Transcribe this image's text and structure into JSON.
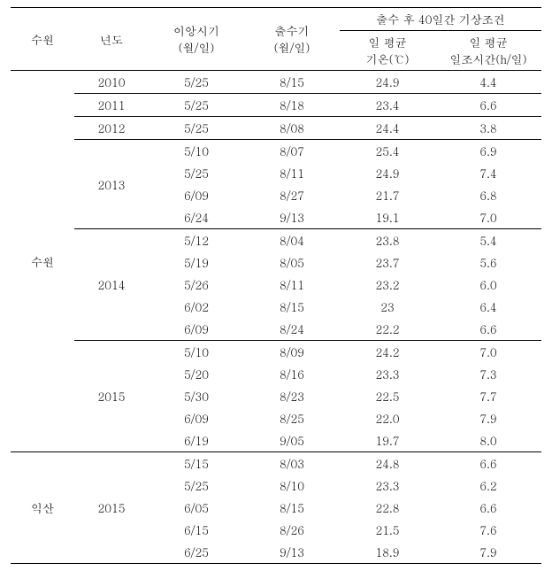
{
  "headers": {
    "region": "수원",
    "year": "년도",
    "transplant": "이앙시기",
    "transplant_unit": "(월/일)",
    "heading": "출수기",
    "heading_unit": "(월/일)",
    "weather_group": "출수 후 40일간 기상조건",
    "avg_temp": "일 평균",
    "avg_temp_unit": "기온(℃)",
    "avg_sun": "일 평균",
    "avg_sun_unit": "일조시간(h/일)"
  },
  "regions": {
    "suwon": "수원",
    "iksan": "익산"
  },
  "years": {
    "y2010": "2010",
    "y2011": "2011",
    "y2012": "2012",
    "y2013": "2013",
    "y2014": "2014",
    "y2015": "2015"
  },
  "rows": [
    {
      "t": "5/25",
      "h": "8/15",
      "temp": "24.9",
      "sun": "4.4"
    },
    {
      "t": "5/25",
      "h": "8/18",
      "temp": "23.4",
      "sun": "6.6"
    },
    {
      "t": "5/25",
      "h": "8/08",
      "temp": "24.4",
      "sun": "3.8"
    },
    {
      "t": "5/10",
      "h": "8/07",
      "temp": "25.4",
      "sun": "6.9"
    },
    {
      "t": "5/25",
      "h": "8/11",
      "temp": "24.9",
      "sun": "7.4"
    },
    {
      "t": "6/09",
      "h": "8/27",
      "temp": "21.7",
      "sun": "6.8"
    },
    {
      "t": "6/24",
      "h": "9/13",
      "temp": "19.1",
      "sun": "7.0"
    },
    {
      "t": "5/12",
      "h": "8/04",
      "temp": "23.8",
      "sun": "5.4"
    },
    {
      "t": "5/19",
      "h": "8/05",
      "temp": "23.7",
      "sun": "5.6"
    },
    {
      "t": "5/26",
      "h": "8/11",
      "temp": "23.2",
      "sun": "6.0"
    },
    {
      "t": "6/02",
      "h": "8/15",
      "temp": "23",
      "sun": "6.4"
    },
    {
      "t": "6/09",
      "h": "8/24",
      "temp": "22.2",
      "sun": "6.6"
    },
    {
      "t": "5/10",
      "h": "8/09",
      "temp": "24.2",
      "sun": "7.0"
    },
    {
      "t": "5/20",
      "h": "8/16",
      "temp": "23.3",
      "sun": "7.3"
    },
    {
      "t": "5/30",
      "h": "8/23",
      "temp": "22.5",
      "sun": "7.7"
    },
    {
      "t": "6/09",
      "h": "8/25",
      "temp": "22.0",
      "sun": "7.9"
    },
    {
      "t": "6/19",
      "h": "9/05",
      "temp": "19.7",
      "sun": "8.0"
    },
    {
      "t": "5/15",
      "h": "8/03",
      "temp": "24.8",
      "sun": "6.6"
    },
    {
      "t": "5/25",
      "h": "8/10",
      "temp": "23.3",
      "sun": "6.2"
    },
    {
      "t": "6/05",
      "h": "8/15",
      "temp": "22.8",
      "sun": "6.6"
    },
    {
      "t": "6/15",
      "h": "8/26",
      "temp": "21.5",
      "sun": "7.6"
    },
    {
      "t": "6/25",
      "h": "9/13",
      "temp": "18.9",
      "sun": "7.9"
    }
  ]
}
